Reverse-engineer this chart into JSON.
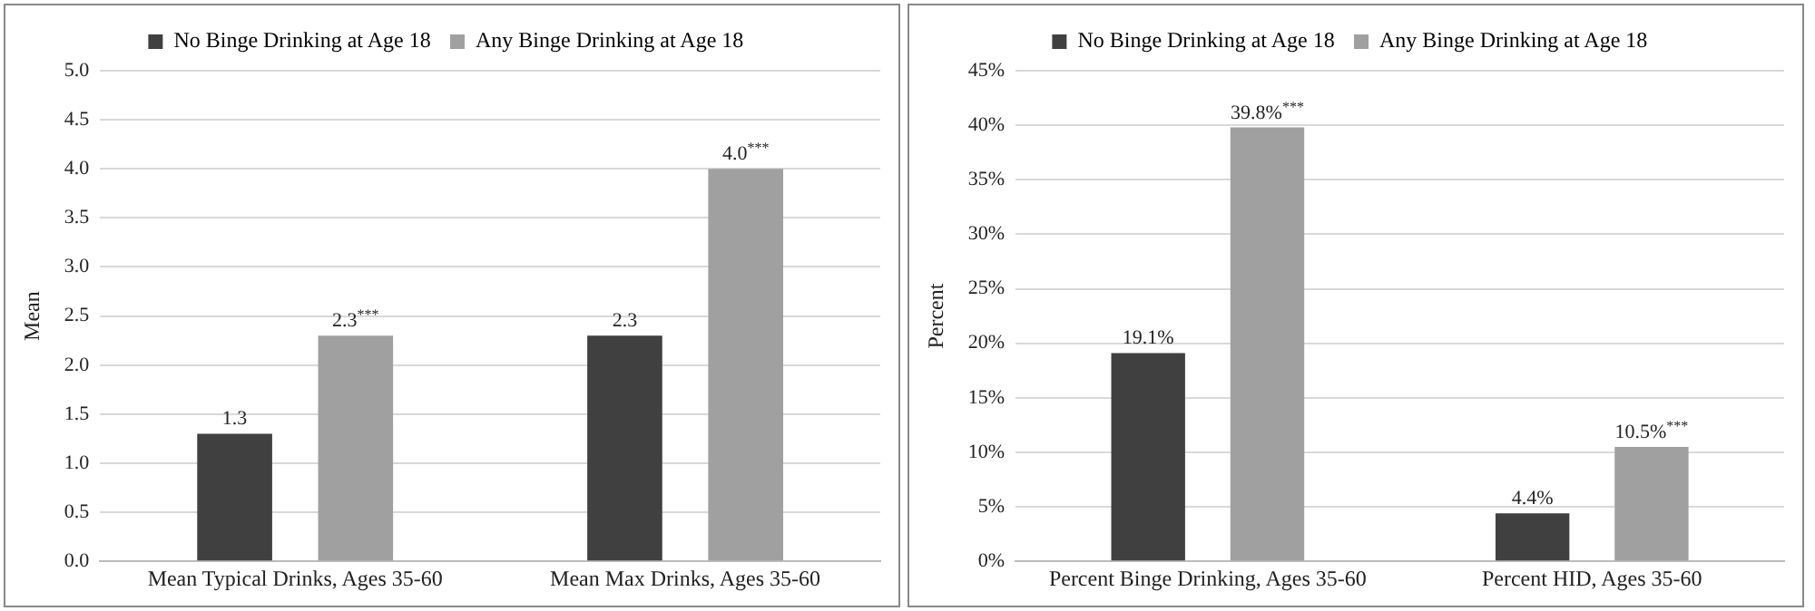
{
  "chart_data": [
    {
      "type": "bar",
      "ylabel": "Mean",
      "categories": [
        "Mean Typical Drinks, Ages 35-60",
        "Mean Max Drinks, Ages 35-60"
      ],
      "series": [
        {
          "name": "No Binge Drinking at Age 18",
          "color": "#404040",
          "values": [
            1.3,
            2.3
          ],
          "value_labels": [
            "1.3",
            "2.3"
          ]
        },
        {
          "name": "Any Binge Drinking at Age 18",
          "color": "#a0a0a0",
          "values": [
            2.3,
            4.0
          ],
          "value_labels": [
            "2.3$^{***}$",
            "4.0$^{***}$"
          ]
        }
      ],
      "ylim": [
        0,
        5
      ],
      "yticks": [
        {
          "value": 0,
          "label": "0.0"
        },
        {
          "value": 0.5,
          "label": "0.5"
        },
        {
          "value": 1,
          "label": "1.0"
        },
        {
          "value": 1.5,
          "label": "1.5"
        },
        {
          "value": 2,
          "label": "2.0"
        },
        {
          "value": 2.5,
          "label": "2.5"
        },
        {
          "value": 3,
          "label": "3.0"
        },
        {
          "value": 3.5,
          "label": "3.5"
        },
        {
          "value": 4,
          "label": "4.0"
        },
        {
          "value": 4.5,
          "label": "4.5"
        },
        {
          "value": 5,
          "label": "5.0"
        }
      ],
      "grid": "y",
      "legend": "top"
    },
    {
      "type": "bar",
      "ylabel": "Percent",
      "categories": [
        "Percent Binge Drinking, Ages 35-60",
        "Percent HID, Ages 35-60"
      ],
      "series": [
        {
          "name": "No Binge Drinking at Age 18",
          "color": "#404040",
          "values": [
            19.1,
            4.4
          ],
          "value_labels": [
            "19.1%",
            "4.4%"
          ]
        },
        {
          "name": "Any Binge Drinking at Age 18",
          "color": "#a0a0a0",
          "values": [
            39.8,
            10.5
          ],
          "value_labels": [
            "39.8%$^{***}$",
            "10.5%$^{***}$"
          ]
        }
      ],
      "ylim": [
        0,
        45
      ],
      "yticks": [
        {
          "value": 0,
          "label": "0%"
        },
        {
          "value": 5,
          "label": "5%"
        },
        {
          "value": 10,
          "label": "10%"
        },
        {
          "value": 15,
          "label": "15%"
        },
        {
          "value": 20,
          "label": "20%"
        },
        {
          "value": 25,
          "label": "25%"
        },
        {
          "value": 30,
          "label": "30%"
        },
        {
          "value": 35,
          "label": "35%"
        },
        {
          "value": 40,
          "label": "40%"
        },
        {
          "value": 45,
          "label": "45%"
        }
      ],
      "grid": "y",
      "legend": "top"
    }
  ]
}
